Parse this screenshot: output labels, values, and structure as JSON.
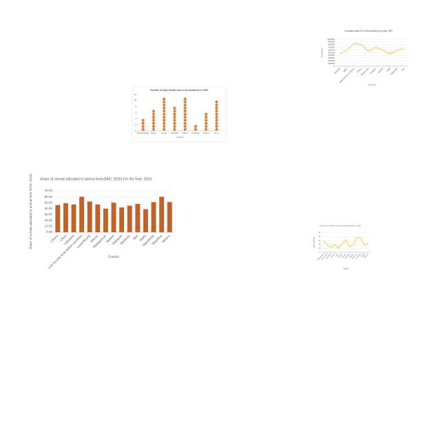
{
  "chart_data": [
    {
      "type": "line",
      "title": "Population aged 15-64 (thousands) by country, 1991",
      "x_label": "Country",
      "y_label": "Population",
      "categories": [
        "Rwanda",
        "Niger",
        "High-income countries",
        "Kenya",
        "Hong Kong",
        "Hungary",
        "Iceland",
        "India",
        "Indonesia",
        "Iran"
      ],
      "series": [
        {
          "name": "Population",
          "color": "#f2c232",
          "values": [
            450000,
            600000,
            850000,
            800000,
            550000,
            700000,
            600000,
            450000,
            600000,
            650000
          ]
        }
      ],
      "ylim": [
        0,
        1000000
      ],
      "yticks": [
        0,
        100000,
        200000,
        300000,
        400000,
        500000,
        600000,
        700000,
        800000,
        900000,
        1000000
      ],
      "grid": true
    },
    {
      "type": "dot",
      "title": "Number of daily deaths due to car accidents in 2009",
      "x_label": "Country",
      "categories": [
        "Mozambique",
        "Nauru",
        "Oman",
        "Pakistan",
        "Palau",
        "Panama",
        "Papua",
        "Peru"
      ],
      "values": [
        4,
        7,
        11,
        8,
        11,
        2,
        6,
        10
      ],
      "color": "#d9823b",
      "ylim": [
        0,
        12
      ],
      "yticks": [
        0,
        2,
        4,
        6,
        8,
        10,
        12
      ],
      "grid": false
    },
    {
      "type": "bar",
      "title": "Share of cereals allocated to animal feed (FAO, 2020)  For the Year: 2010",
      "x_label": "Country",
      "y_label": "Share of cereals allocated to animal feed (FAO, 2020)",
      "categories": [
        "Liberia",
        "Libya",
        "Lithuania",
        "Low income food deficit countries",
        "Luxembourg",
        "Macao",
        "Madagascar",
        "Malawi",
        "Malaysia",
        "Maldives",
        "Mali",
        "Malta",
        "Mauritania",
        "Mauritius",
        "Mexico"
      ],
      "values": [
        46,
        49,
        47,
        60,
        52,
        47,
        40,
        50,
        42,
        45,
        48,
        39,
        51,
        60,
        51
      ],
      "color": "#c0632b",
      "ylim": [
        0,
        70
      ],
      "yticks": [
        {
          "value": 0,
          "label": "0.00"
        },
        {
          "value": 10,
          "label": "10.00"
        },
        {
          "value": 20,
          "label": "20.00"
        },
        {
          "value": 30,
          "label": "30.00"
        },
        {
          "value": 40,
          "label": "40.00"
        },
        {
          "value": 50,
          "label": "50.00"
        },
        {
          "value": 60,
          "label": "60.00"
        },
        {
          "value": 70,
          "label": "70.00"
        }
      ],
      "grid": true
    },
    {
      "type": "line",
      "title": "Share of women in national parliaments in 2019",
      "x_label": "Country",
      "y_label": "Share of seats",
      "categories": [
        "Afghanistan",
        "Costa Rica",
        "Colombia",
        "Croatia",
        "Cuba",
        "Cyprus",
        "Czechia",
        "Denmark",
        "Djibouti",
        "Dominica",
        "Ecuador",
        "Egypt",
        "Estonia"
      ],
      "series": [
        {
          "name": "Share of seats",
          "color": "#f2c232",
          "values": [
            30,
            18,
            12,
            20,
            10,
            22,
            32,
            14,
            20,
            38,
            37,
            18,
            24
          ]
        }
      ],
      "ylim": [
        0,
        50
      ],
      "yticks": [
        0,
        10,
        20,
        30,
        40,
        50
      ],
      "grid": true
    }
  ]
}
